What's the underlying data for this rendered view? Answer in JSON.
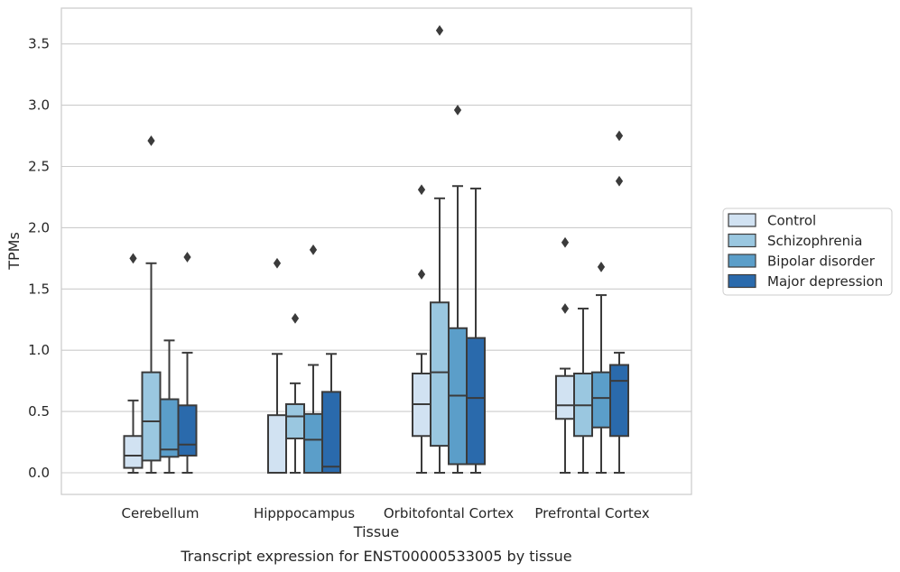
{
  "chart_data": {
    "type": "box",
    "xlabel": "Tissue",
    "ylabel": "TPMs",
    "caption": "Transcript expression for ENST00000533005 by tissue",
    "ylim": [
      -0.17,
      3.76
    ],
    "yticks": [
      "0.0",
      "0.5",
      "1.0",
      "1.5",
      "2.0",
      "2.5",
      "3.0",
      "3.5"
    ],
    "grid": "horizontal",
    "legend_position": "right",
    "categories": [
      "Cerebellum",
      "Hipppocampus",
      "Orbitofontal Cortex",
      "Prefrontal Cortex"
    ],
    "series": [
      {
        "name": "Control",
        "color": "#d1e2f2",
        "boxes": [
          {
            "whislo": 0.0,
            "q1": 0.04,
            "med": 0.14,
            "q3": 0.3,
            "whishi": 0.59,
            "fliers": [
              1.75
            ]
          },
          {
            "whislo": 0.0,
            "q1": 0.0,
            "med": 0.0,
            "q3": 0.47,
            "whishi": 0.97,
            "fliers": [
              1.71
            ]
          },
          {
            "whislo": 0.0,
            "q1": 0.3,
            "med": 0.56,
            "q3": 0.81,
            "whishi": 0.97,
            "fliers": [
              1.62,
              2.31
            ]
          },
          {
            "whislo": 0.0,
            "q1": 0.44,
            "med": 0.55,
            "q3": 0.79,
            "whishi": 0.85,
            "fliers": [
              1.34,
              1.88
            ]
          }
        ]
      },
      {
        "name": "Schizophrenia",
        "color": "#9ac7e0",
        "boxes": [
          {
            "whislo": 0.0,
            "q1": 0.1,
            "med": 0.42,
            "q3": 0.82,
            "whishi": 1.71,
            "fliers": [
              2.71
            ]
          },
          {
            "whislo": 0.0,
            "q1": 0.28,
            "med": 0.46,
            "q3": 0.56,
            "whishi": 0.73,
            "fliers": [
              1.26
            ]
          },
          {
            "whislo": 0.0,
            "q1": 0.22,
            "med": 0.82,
            "q3": 1.39,
            "whishi": 2.24,
            "fliers": [
              3.61
            ]
          },
          {
            "whislo": 0.0,
            "q1": 0.3,
            "med": 0.55,
            "q3": 0.81,
            "whishi": 1.34,
            "fliers": []
          }
        ]
      },
      {
        "name": "Bipolar disorder",
        "color": "#5b9ec9",
        "boxes": [
          {
            "whislo": 0.0,
            "q1": 0.13,
            "med": 0.19,
            "q3": 0.6,
            "whishi": 1.08,
            "fliers": []
          },
          {
            "whislo": 0.0,
            "q1": 0.0,
            "med": 0.27,
            "q3": 0.48,
            "whishi": 0.88,
            "fliers": [
              1.82
            ]
          },
          {
            "whislo": 0.0,
            "q1": 0.07,
            "med": 0.63,
            "q3": 1.18,
            "whishi": 2.34,
            "fliers": [
              2.96
            ]
          },
          {
            "whislo": 0.0,
            "q1": 0.37,
            "med": 0.61,
            "q3": 0.82,
            "whishi": 1.45,
            "fliers": [
              1.68
            ]
          }
        ]
      },
      {
        "name": "Major depression",
        "color": "#2a6aac",
        "boxes": [
          {
            "whislo": 0.0,
            "q1": 0.14,
            "med": 0.23,
            "q3": 0.55,
            "whishi": 0.98,
            "fliers": [
              1.76
            ]
          },
          {
            "whislo": 0.0,
            "q1": 0.0,
            "med": 0.05,
            "q3": 0.66,
            "whishi": 0.97,
            "fliers": []
          },
          {
            "whislo": 0.0,
            "q1": 0.07,
            "med": 0.61,
            "q3": 1.1,
            "whishi": 2.32,
            "fliers": []
          },
          {
            "whislo": 0.0,
            "q1": 0.3,
            "med": 0.75,
            "q3": 0.88,
            "whishi": 0.98,
            "fliers": [
              2.38,
              2.75
            ]
          }
        ]
      }
    ]
  }
}
